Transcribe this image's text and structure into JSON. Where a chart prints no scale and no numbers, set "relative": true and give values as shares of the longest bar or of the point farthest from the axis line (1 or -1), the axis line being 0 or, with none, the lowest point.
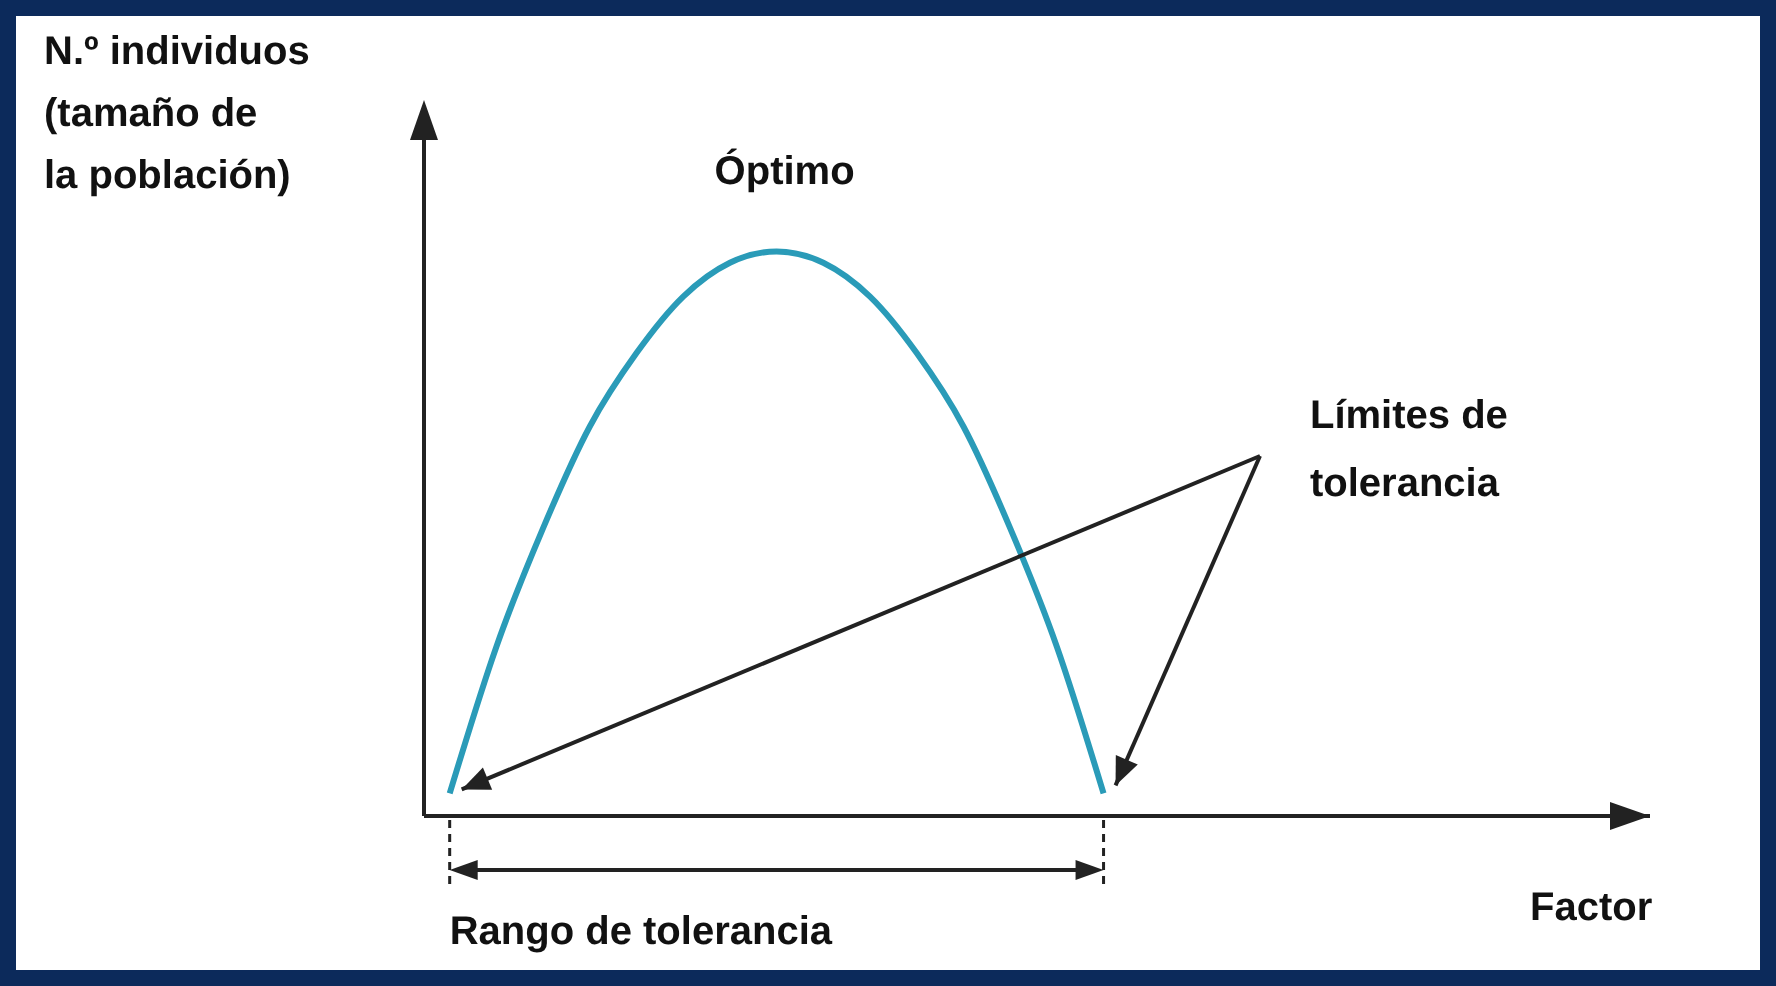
{
  "chart_data": {
    "type": "line",
    "relative": true,
    "ylabel": "N.º individuos\n(tamaño de\nla población)",
    "xlabel": "Factor",
    "categories": [
      null,
      null,
      null,
      null,
      null,
      null,
      null,
      null,
      null,
      null,
      null,
      null,
      null,
      null,
      null,
      null,
      null,
      null,
      null,
      null,
      null,
      null,
      null,
      null,
      null,
      null
    ],
    "series": [
      {
        "color": "#2a9bb8",
        "values": [
          0.04,
          0.3,
          0.51,
          0.69,
          0.82,
          0.92,
          0.98,
          1,
          0.98,
          0.92,
          0.82,
          0.69,
          0.51,
          0.3,
          0.04,
          null,
          null,
          null,
          null,
          null,
          null,
          null,
          null,
          null,
          null,
          null
        ]
      }
    ],
    "annotations": [
      "Óptimo",
      "Límites de\ntolerancia",
      "Rango de tolerancia"
    ],
    "grid": false,
    "legend": false,
    "marker": "none",
    "line_style": "solid"
  }
}
